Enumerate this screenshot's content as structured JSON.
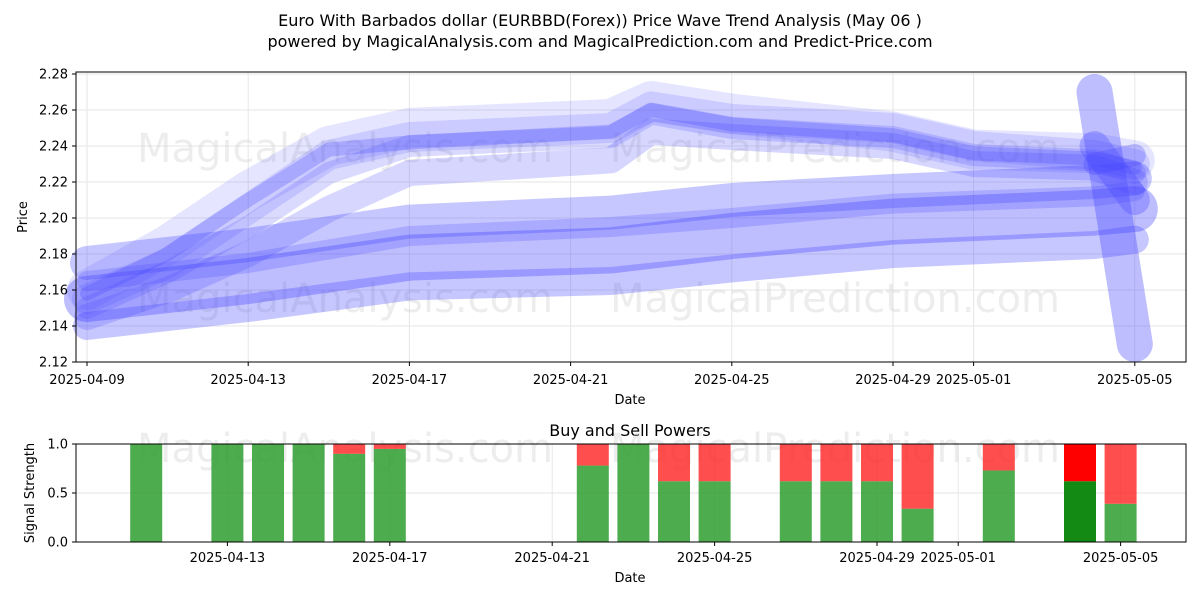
{
  "title_line1": "Euro With Barbados dollar (EURBBD(Forex)) Price Wave Trend Analysis (May 06 )",
  "title_line2": "powered by MagicalAnalysis.com and MagicalPrediction.com and Predict-Price.com",
  "watermarks": [
    "MagicalAnalysis.com",
    "MagicalPrediction.com"
  ],
  "colors": {
    "wave": "#4444ff",
    "buy": "#2e9e2e",
    "sell": "#ff2222",
    "buy_dark": "#138a13",
    "sell_dark": "#ff0000",
    "grid": "#e6e6e6"
  },
  "chart_data": [
    {
      "type": "line",
      "title": "",
      "xlabel": "Date",
      "ylabel": "Price",
      "ylim": [
        2.12,
        2.28
      ],
      "yticks": [
        "2.12",
        "2.14",
        "2.16",
        "2.18",
        "2.20",
        "2.22",
        "2.24",
        "2.26",
        "2.28"
      ],
      "xticks": [
        "2025-04-09",
        "2025-04-13",
        "2025-04-17",
        "2025-04-21",
        "2025-04-25",
        "2025-04-29",
        "2025-05-01",
        "2025-05-05"
      ],
      "grid": true,
      "series": [
        {
          "x": [
            "2025-04-09",
            "2025-04-11",
            "2025-04-13",
            "2025-04-15",
            "2025-04-17",
            "2025-04-22",
            "2025-04-23",
            "2025-04-25",
            "2025-04-29",
            "2025-05-01",
            "2025-05-04",
            "2025-05-05"
          ],
          "values": [
            2.155,
            2.175,
            2.205,
            2.235,
            2.245,
            2.25,
            2.262,
            2.255,
            2.25,
            2.24,
            2.235,
            2.23
          ]
        },
        {
          "x": [
            "2025-04-09",
            "2025-04-11",
            "2025-04-13",
            "2025-04-15",
            "2025-04-17",
            "2025-04-22",
            "2025-04-23",
            "2025-04-25",
            "2025-04-29",
            "2025-05-01",
            "2025-05-04",
            "2025-05-05"
          ],
          "values": [
            2.15,
            2.17,
            2.195,
            2.225,
            2.24,
            2.245,
            2.258,
            2.25,
            2.245,
            2.235,
            2.232,
            2.225
          ]
        },
        {
          "x": [
            "2025-04-09",
            "2025-04-11",
            "2025-04-13",
            "2025-04-15",
            "2025-04-17",
            "2025-04-22",
            "2025-04-23",
            "2025-04-25",
            "2025-04-29",
            "2025-05-01",
            "2025-05-04",
            "2025-05-05"
          ],
          "values": [
            2.16,
            2.185,
            2.215,
            2.24,
            2.25,
            2.255,
            2.265,
            2.258,
            2.248,
            2.238,
            2.236,
            2.232
          ]
        },
        {
          "x": [
            "2025-04-09",
            "2025-04-11",
            "2025-04-13",
            "2025-04-15",
            "2025-04-17",
            "2025-04-22",
            "2025-04-23",
            "2025-04-25",
            "2025-04-29",
            "2025-05-01",
            "2025-05-04",
            "2025-05-05"
          ],
          "values": [
            2.145,
            2.16,
            2.18,
            2.205,
            2.225,
            2.232,
            2.248,
            2.245,
            2.24,
            2.23,
            2.228,
            2.22
          ]
        },
        {
          "x": [
            "2025-04-09",
            "2025-04-11",
            "2025-04-13",
            "2025-04-15",
            "2025-04-17",
            "2025-04-22",
            "2025-04-23",
            "2025-04-25",
            "2025-04-29",
            "2025-05-01",
            "2025-05-04",
            "2025-05-05"
          ],
          "values": [
            2.158,
            2.18,
            2.21,
            2.238,
            2.242,
            2.248,
            2.26,
            2.252,
            2.246,
            2.236,
            2.233,
            2.228
          ]
        },
        {
          "x": [
            "2025-04-09",
            "2025-04-13",
            "2025-04-17",
            "2025-04-22",
            "2025-04-25",
            "2025-04-29",
            "2025-05-04",
            "2025-05-05"
          ],
          "values": [
            2.175,
            2.185,
            2.198,
            2.203,
            2.21,
            2.215,
            2.22,
            2.222
          ]
        },
        {
          "x": [
            "2025-04-09",
            "2025-04-13",
            "2025-04-17",
            "2025-04-22",
            "2025-04-25",
            "2025-04-29",
            "2025-05-04",
            "2025-05-05"
          ],
          "values": [
            2.155,
            2.165,
            2.178,
            2.182,
            2.19,
            2.198,
            2.203,
            2.205
          ]
        },
        {
          "x": [
            "2025-04-09",
            "2025-04-13",
            "2025-04-17",
            "2025-04-22",
            "2025-04-25",
            "2025-04-29",
            "2025-05-04",
            "2025-05-05"
          ],
          "values": [
            2.14,
            2.15,
            2.162,
            2.165,
            2.172,
            2.18,
            2.185,
            2.188
          ]
        },
        {
          "x": [
            "2025-04-09",
            "2025-04-13",
            "2025-04-17",
            "2025-04-22",
            "2025-04-25",
            "2025-04-29",
            "2025-05-04",
            "2025-05-05"
          ],
          "values": [
            2.165,
            2.175,
            2.19,
            2.195,
            2.2,
            2.208,
            2.212,
            2.215
          ]
        },
        {
          "x": [
            "2025-05-04",
            "2025-05-05"
          ],
          "values": [
            2.27,
            2.13
          ]
        },
        {
          "x": [
            "2025-05-04",
            "2025-05-05"
          ],
          "values": [
            2.24,
            2.21
          ]
        },
        {
          "x": [
            "2025-05-04",
            "2025-05-05"
          ],
          "values": [
            2.23,
            2.235
          ]
        }
      ]
    },
    {
      "type": "bar",
      "title": "Buy and Sell Powers",
      "xlabel": "Date",
      "ylabel": "Signal Strength",
      "ylim": [
        0,
        1.0
      ],
      "yticks": [
        "0.0",
        "0.5",
        "1.0"
      ],
      "xticks": [
        "2025-04-13",
        "2025-04-17",
        "2025-04-21",
        "2025-04-25",
        "2025-04-29",
        "2025-05-01",
        "2025-05-05"
      ],
      "categories": [
        "2025-04-11",
        "2025-04-13",
        "2025-04-14",
        "2025-04-15",
        "2025-04-16",
        "2025-04-17",
        "2025-04-22",
        "2025-04-23",
        "2025-04-24",
        "2025-04-25",
        "2025-04-27",
        "2025-04-28",
        "2025-04-29",
        "2025-04-30",
        "2025-05-02",
        "2025-05-04",
        "2025-05-05"
      ],
      "series": [
        {
          "name": "buy",
          "values": [
            1.0,
            1.0,
            1.0,
            1.0,
            0.9,
            0.95,
            0.78,
            1.0,
            0.62,
            0.62,
            0.62,
            0.62,
            0.62,
            0.34,
            0.73,
            0.62,
            0.39
          ]
        },
        {
          "name": "sell",
          "values": [
            0.0,
            0.0,
            0.0,
            0.0,
            0.1,
            0.05,
            0.22,
            0.0,
            0.38,
            0.38,
            0.38,
            0.38,
            0.38,
            0.66,
            0.27,
            0.38,
            0.61
          ]
        }
      ],
      "highlight_category": "2025-05-04"
    }
  ]
}
